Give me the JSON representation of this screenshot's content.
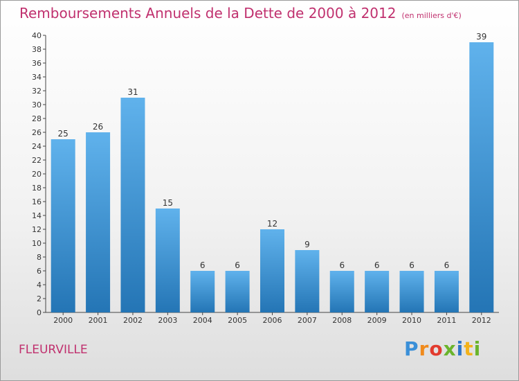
{
  "title": "Remboursements Annuels de la Dette de 2000 à 2012",
  "subtitle": "(en milliers d'€)",
  "town": "FLEURVILLE",
  "logo": {
    "text": "Proxiti",
    "letters": [
      "P",
      "r",
      "o",
      "x",
      "i",
      "t",
      "i"
    ],
    "colors": [
      "#3a8fd8",
      "#f08a1c",
      "#e23b2e",
      "#6ab42c",
      "#2e76c8",
      "#f3b21b",
      "#6ab42c"
    ]
  },
  "colors": {
    "title": "#c0306e",
    "bar_top": "#60b2ec",
    "bar_bottom": "#2475b5",
    "axis": "#444444",
    "grid": "#cccccc"
  },
  "chart_data": {
    "type": "bar",
    "categories": [
      "2000",
      "2001",
      "2002",
      "2003",
      "2004",
      "2005",
      "2006",
      "2007",
      "2008",
      "2009",
      "2010",
      "2011",
      "2012"
    ],
    "values": [
      25,
      26,
      31,
      15,
      6,
      6,
      12,
      9,
      6,
      6,
      6,
      6,
      39
    ],
    "yticks": [
      0,
      2,
      4,
      6,
      8,
      10,
      12,
      14,
      16,
      18,
      20,
      22,
      24,
      26,
      28,
      30,
      32,
      34,
      36,
      38,
      40
    ],
    "ylim": [
      0,
      40
    ],
    "grid": false,
    "legend": "none"
  }
}
